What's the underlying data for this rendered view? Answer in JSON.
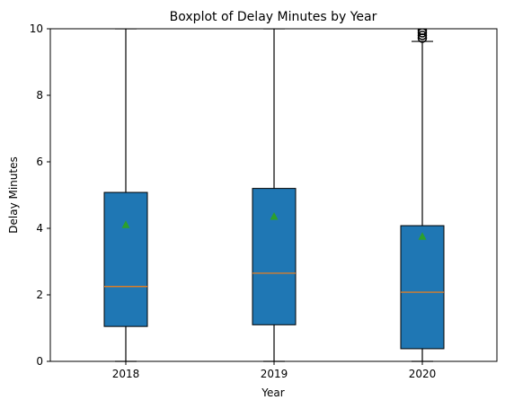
{
  "chart_data": {
    "type": "boxplot",
    "title": "Boxplot of Delay Minutes by Year",
    "xlabel": "Year",
    "ylabel": "Delay Minutes",
    "ylim": [
      0,
      10
    ],
    "yticks": [
      "0",
      "2",
      "4",
      "6",
      "8",
      "10"
    ],
    "grid": false,
    "categories": [
      "2018",
      "2019",
      "2020"
    ],
    "boxes": [
      {
        "category": "2018",
        "whisker_low": 0,
        "q1": 1.05,
        "median": 2.25,
        "q3": 5.08,
        "whisker_high": 10,
        "mean": 4.1,
        "outliers": []
      },
      {
        "category": "2019",
        "whisker_low": 0,
        "q1": 1.1,
        "median": 2.65,
        "q3": 5.2,
        "whisker_high": 10,
        "mean": 4.35,
        "outliers": []
      },
      {
        "category": "2020",
        "whisker_low": 0,
        "q1": 0.38,
        "median": 2.08,
        "q3": 4.08,
        "whisker_high": 9.62,
        "mean": 3.75,
        "outliers": [
          9.72,
          9.8,
          9.88,
          9.95
        ]
      }
    ],
    "colors": {
      "box_fill": "#1f77b4",
      "median": "#ff7f0e",
      "mean_marker": "#2ca02c",
      "line": "#000000"
    }
  }
}
